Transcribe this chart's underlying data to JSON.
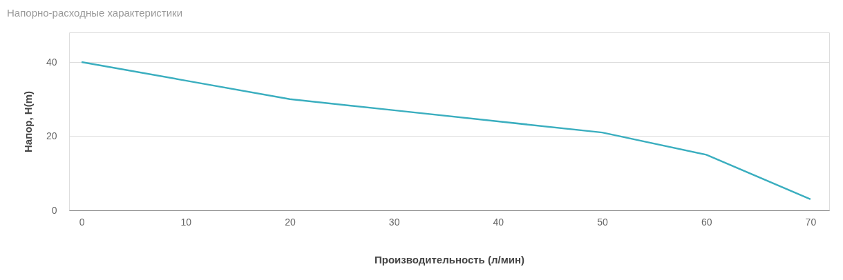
{
  "chart_data": {
    "type": "line",
    "title": "Напорно-расходные характеристики",
    "xlabel": "Производительность (л/мин)",
    "ylabel": "Напор, H(m)",
    "x": [
      0,
      10,
      20,
      30,
      40,
      50,
      60,
      70
    ],
    "series": [
      {
        "color": "#3aaebf",
        "values": [
          40,
          35,
          30,
          27,
          24,
          21,
          15,
          3
        ]
      }
    ],
    "xlim": [
      -1.2,
      71.8
    ],
    "xticks": [
      0,
      10,
      20,
      30,
      40,
      50,
      60,
      70
    ],
    "ylim": [
      0,
      48
    ],
    "yticks": [
      0,
      20,
      40
    ],
    "grid": "y",
    "marker": "none",
    "line_style": "solid"
  }
}
